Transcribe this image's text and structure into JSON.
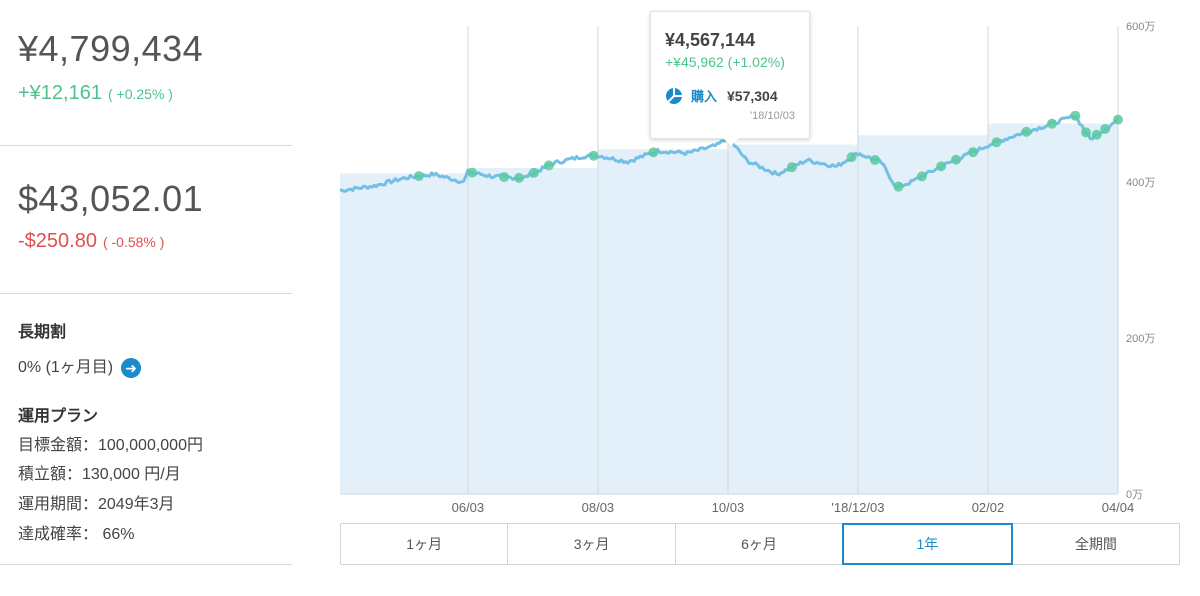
{
  "summary": {
    "total_jpy": "¥4,799,434",
    "change_jpy": "+¥12,161",
    "change_jpy_pct": "( +0.25% )",
    "total_usd": "$43,052.01",
    "change_usd": "-$250.80",
    "change_usd_pct": "( -0.58% )"
  },
  "discount": {
    "title": "長期割",
    "value": "0% (1ヶ月目)"
  },
  "plan": {
    "title": "運用プラン",
    "target": "目標金額：100,000,000円",
    "monthly": "積立額：130,000 円/月",
    "period": "運用期間：2049年3月",
    "probability": "達成確率： 66%"
  },
  "tooltip": {
    "value": "¥4,567,144",
    "change": "+¥45,962 (+1.02%)",
    "purchase_label": "購入",
    "purchase_amount": "¥57,304",
    "date": "'18/10/03",
    "icon": "wealthnavi-logo-icon"
  },
  "tabs": [
    {
      "label": "1ヶ月",
      "active": false
    },
    {
      "label": "3ヶ月",
      "active": false
    },
    {
      "label": "6ヶ月",
      "active": false
    },
    {
      "label": "1年",
      "active": true
    },
    {
      "label": "全期間",
      "active": false
    }
  ],
  "colors": {
    "line": "#73bfe6",
    "area": "#e3f0f9",
    "marker": "#5ac9a0",
    "accent": "#1a8ccc",
    "positive": "#4cc38a",
    "negative": "#e05050"
  },
  "chart_data": {
    "type": "line",
    "x_tick_labels": [
      "06/03",
      "08/03",
      "10/03",
      "'18/12/03",
      "02/02",
      "04/04"
    ],
    "y_tick_labels": [
      "0万",
      "200万",
      "400万",
      "600万"
    ],
    "ylim": [
      0,
      600
    ],
    "y_unit": "万",
    "grid": true,
    "series": [
      {
        "role": "valuation",
        "x": [
          "'18/04/04",
          "'18/04/20",
          "'18/05/04",
          "'18/05/18",
          "'18/06/01",
          "'18/06/03",
          "'18/06/15",
          "'18/06/29",
          "'18/07/13",
          "'18/07/27",
          "'18/08/03",
          "'18/08/17",
          "'18/08/31",
          "'18/09/14",
          "'18/09/28",
          "'18/10/03",
          "'18/10/12",
          "'18/10/26",
          "'18/11/09",
          "'18/11/23",
          "'18/12/03",
          "'18/12/14",
          "'18/12/21",
          "'18/12/28",
          "'19/01/11",
          "'19/01/25",
          "'19/02/02",
          "'19/02/15",
          "'19/03/01",
          "'19/03/15",
          "'19/03/22",
          "'19/03/29",
          "'19/04/04"
        ],
        "y": [
          389,
          395,
          405,
          410,
          400,
          413,
          407,
          405,
          424,
          433,
          434,
          426,
          440,
          437,
          447,
          457,
          427,
          410,
          428,
          420,
          437,
          425,
          393,
          400,
          420,
          437,
          447,
          460,
          472,
          485,
          455,
          468,
          480
        ]
      },
      {
        "role": "invested",
        "x": [
          "'18/04/04",
          "'18/06/03",
          "'18/08/03",
          "'18/10/03",
          "'18/12/03",
          "'19/02/02",
          "'19/04/04"
        ],
        "y": [
          411,
          418,
          442,
          448,
          460,
          475,
          485
        ]
      }
    ],
    "markers": {
      "label": "購入",
      "x": [
        "'18/05/11",
        "'18/06/05",
        "'18/06/20",
        "'18/06/27",
        "'18/07/04",
        "'18/07/11",
        "'18/08/01",
        "'18/08/29",
        "'18/10/03",
        "'18/11/02",
        "'18/11/30",
        "'18/12/11",
        "'18/12/22",
        "'19/01/02",
        "'19/01/11",
        "'19/01/18",
        "'19/01/26",
        "'19/02/06",
        "'19/02/20",
        "'19/03/04",
        "'19/03/15",
        "'19/03/20",
        "'19/03/25",
        "'19/03/29",
        "'19/04/04"
      ]
    }
  }
}
